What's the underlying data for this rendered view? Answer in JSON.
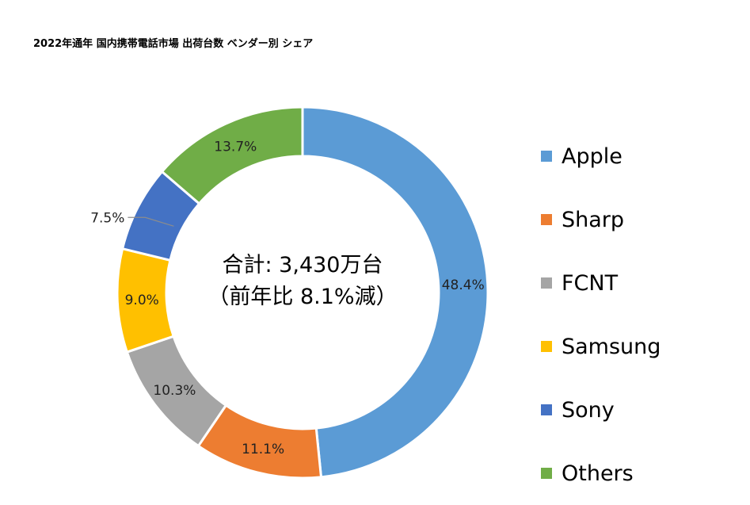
{
  "title": "2022年通年 国内携帯電話市場 出荷台数 ベンダー別 シェア",
  "center": {
    "line1": "合計: 3,430万台",
    "line2": "（前年比 8.1%減）"
  },
  "chart_data": {
    "type": "pie",
    "title": "2022年通年 国内携帯電話市場 出荷台数 ベンダー別 シェア",
    "donut": true,
    "legend_position": "right",
    "series": [
      {
        "name": "Apple",
        "value": 48.4,
        "label": "48.4%",
        "color": "#5B9BD5"
      },
      {
        "name": "Sharp",
        "value": 11.1,
        "label": "11.1%",
        "color": "#ED7D31"
      },
      {
        "name": "FCNT",
        "value": 10.3,
        "label": "10.3%",
        "color": "#A5A5A5"
      },
      {
        "name": "Samsung",
        "value": 9.0,
        "label": "9.0%",
        "color": "#FFC000"
      },
      {
        "name": "Sony",
        "value": 7.5,
        "label": "7.5%",
        "color": "#4472C4"
      },
      {
        "name": "Others",
        "value": 13.7,
        "label": "13.7%",
        "color": "#70AD47"
      }
    ]
  }
}
